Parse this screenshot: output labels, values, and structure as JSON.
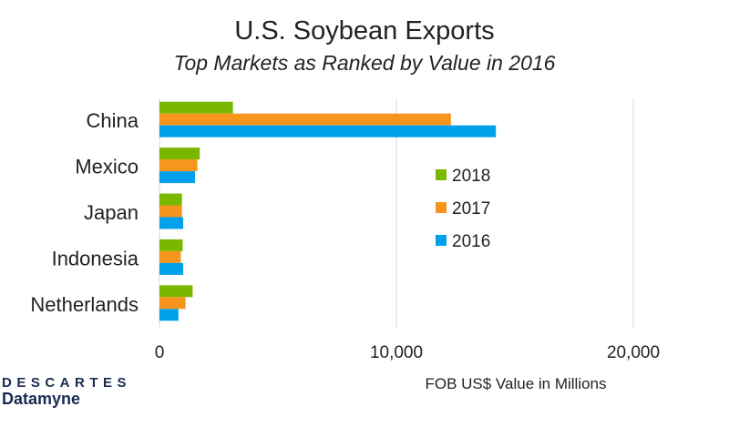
{
  "chart_data": {
    "type": "bar",
    "orientation": "horizontal",
    "title": "U.S. Soybean Exports",
    "subtitle": "Top Markets as Ranked by Value in 2016",
    "xlabel": "FOB US$ Value in Millions",
    "ylabel": "",
    "categories": [
      "China",
      "Mexico",
      "Japan",
      "Indonesia",
      "Netherlands"
    ],
    "series": [
      {
        "name": "2018",
        "color": "#7ab800",
        "values": [
          3100,
          1700,
          950,
          980,
          1400
        ]
      },
      {
        "name": "2017",
        "color": "#f7941d",
        "values": [
          12300,
          1600,
          950,
          900,
          1100
        ]
      },
      {
        "name": "2016",
        "color": "#00a0ea",
        "values": [
          14200,
          1500,
          1000,
          1000,
          800
        ]
      }
    ],
    "xlim": [
      0,
      20000
    ],
    "xticks": [
      {
        "value": 0,
        "label": "0"
      },
      {
        "value": 10000,
        "label": "10,000"
      },
      {
        "value": 20000,
        "label": "20,000"
      }
    ],
    "grid": true,
    "legend_position": "center-right"
  },
  "logo": {
    "top": "DESCARTES",
    "bottom": "Datamyne"
  }
}
